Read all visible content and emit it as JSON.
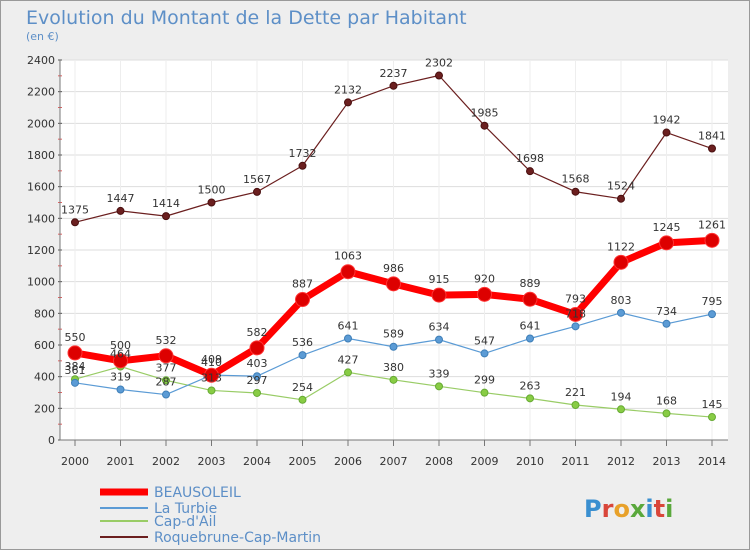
{
  "chart_data": {
    "type": "line",
    "title": "Evolution du Montant de la Dette par Habitant",
    "subtitle": "(en €)",
    "x": [
      "2000",
      "2001",
      "2002",
      "2003",
      "2004",
      "2005",
      "2006",
      "2007",
      "2008",
      "2009",
      "2010",
      "2011",
      "2012",
      "2013",
      "2014"
    ],
    "ylim": [
      0,
      2400
    ],
    "yticks": [
      0,
      200,
      400,
      600,
      800,
      1000,
      1200,
      1400,
      1600,
      1800,
      2000,
      2200,
      2400
    ],
    "grid": true,
    "legend_position": "bottom-left",
    "series": [
      {
        "name": "BEAUSOLEIL",
        "color": "#ff0000",
        "values": [
          550,
          500,
          532,
          409,
          582,
          887,
          1063,
          986,
          915,
          920,
          889,
          793,
          1122,
          1245,
          1261
        ]
      },
      {
        "name": "La Turbie",
        "color": "#5b9bd5",
        "values": [
          361,
          319,
          287,
          410,
          403,
          536,
          641,
          589,
          634,
          547,
          641,
          718,
          803,
          734,
          795
        ]
      },
      {
        "name": "Cap-d'Ail",
        "color": "#99cc66",
        "values": [
          384,
          464,
          377,
          313,
          297,
          254,
          427,
          380,
          339,
          299,
          263,
          221,
          194,
          168,
          145
        ]
      },
      {
        "name": "Roquebrune-Cap-Martin",
        "color": "#6b1f1f",
        "values": [
          1375,
          1447,
          1414,
          1500,
          1567,
          1732,
          2132,
          2237,
          2302,
          1985,
          1698,
          1568,
          1524,
          1942,
          1841
        ]
      }
    ]
  },
  "brand": {
    "logo_text": "Proxiti"
  }
}
